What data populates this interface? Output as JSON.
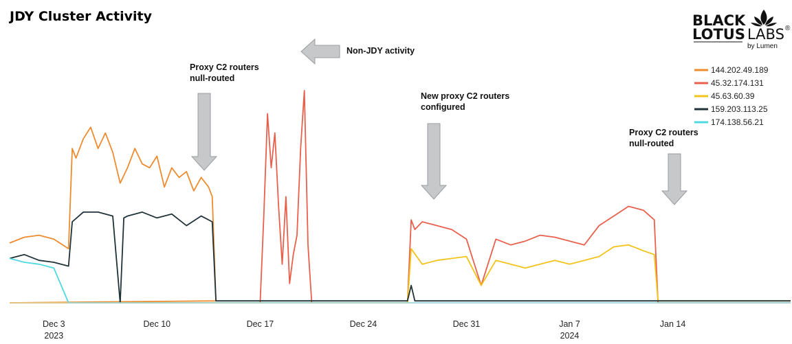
{
  "chart_data": {
    "type": "line",
    "title": "JDY Cluster Activity",
    "xlabel": "",
    "ylabel": "",
    "x_range": [
      "2023-11-30",
      "2024-01-22"
    ],
    "y_range": [
      0,
      100
    ],
    "grid": false,
    "legend_position": "top-right",
    "x_ticks": [
      {
        "date": "2023-12-03",
        "label": "Dec 3",
        "sublabel": "2023"
      },
      {
        "date": "2023-12-10",
        "label": "Dec 10",
        "sublabel": ""
      },
      {
        "date": "2023-12-17",
        "label": "Dec 17",
        "sublabel": ""
      },
      {
        "date": "2023-12-24",
        "label": "Dec 24",
        "sublabel": ""
      },
      {
        "date": "2023-12-31",
        "label": "Dec 31",
        "sublabel": ""
      },
      {
        "date": "2024-01-07",
        "label": "Jan 7",
        "sublabel": "2024"
      },
      {
        "date": "2024-01-14",
        "label": "Jan 14",
        "sublabel": ""
      }
    ],
    "series": [
      {
        "name": "144.202.49.189",
        "color": "#ED8B2E",
        "points": [
          [
            "2023-11-30",
            31
          ],
          [
            "2023-12-01",
            34
          ],
          [
            "2023-12-02",
            35
          ],
          [
            "2023-12-03",
            33
          ],
          [
            "2023-12-04",
            28
          ],
          [
            "2023-12-04 06:00",
            80
          ],
          [
            "2023-12-04 12:00",
            75
          ],
          [
            "2023-12-05",
            85
          ],
          [
            "2023-12-05 12:00",
            91
          ],
          [
            "2023-12-06",
            80
          ],
          [
            "2023-12-06 12:00",
            88
          ],
          [
            "2023-12-07",
            78
          ],
          [
            "2023-12-07 12:00",
            62
          ],
          [
            "2023-12-08",
            70
          ],
          [
            "2023-12-08 12:00",
            80
          ],
          [
            "2023-12-09",
            72
          ],
          [
            "2023-12-09 12:00",
            70
          ],
          [
            "2023-12-10",
            76
          ],
          [
            "2023-12-10 12:00",
            60
          ],
          [
            "2023-12-11",
            70
          ],
          [
            "2023-12-11 12:00",
            65
          ],
          [
            "2023-12-12",
            68
          ],
          [
            "2023-12-12 12:00",
            58
          ],
          [
            "2023-12-13",
            65
          ],
          [
            "2023-12-13 12:00",
            60
          ],
          [
            "2023-12-13 18:00",
            55
          ],
          [
            "2023-12-14",
            1
          ],
          [
            "2023-11-30",
            0
          ]
        ]
      },
      {
        "name": "45.32.174.131",
        "color": "#E8604C",
        "points": [
          [
            "2023-11-30",
            0
          ],
          [
            "2023-12-14",
            0
          ],
          [
            "2023-12-17",
            0
          ],
          [
            "2023-12-17 06:00",
            45
          ],
          [
            "2023-12-17 12:00",
            98
          ],
          [
            "2023-12-17 18:00",
            70
          ],
          [
            "2023-12-18",
            88
          ],
          [
            "2023-12-18 06:00",
            50
          ],
          [
            "2023-12-18 12:00",
            20
          ],
          [
            "2023-12-18 18:00",
            55
          ],
          [
            "2023-12-19",
            10
          ],
          [
            "2023-12-19 06:00",
            25
          ],
          [
            "2023-12-19 12:00",
            35
          ],
          [
            "2023-12-19 18:00",
            80
          ],
          [
            "2023-12-20",
            110
          ],
          [
            "2023-12-20 06:00",
            30
          ],
          [
            "2023-12-20 12:00",
            0
          ],
          [
            "2023-12-27",
            0
          ],
          [
            "2023-12-27 06:00",
            43
          ],
          [
            "2023-12-27 12:00",
            38
          ],
          [
            "2023-12-28",
            42
          ],
          [
            "2023-12-29",
            40
          ],
          [
            "2023-12-30",
            38
          ],
          [
            "2023-12-31",
            33
          ],
          [
            "2024-01-01",
            9
          ],
          [
            "2024-01-02",
            33
          ],
          [
            "2024-01-03",
            30
          ],
          [
            "2024-01-04",
            32
          ],
          [
            "2024-01-05",
            35
          ],
          [
            "2024-01-06",
            34
          ],
          [
            "2024-01-07",
            32
          ],
          [
            "2024-01-08",
            30
          ],
          [
            "2024-01-09",
            40
          ],
          [
            "2024-01-10",
            45
          ],
          [
            "2024-01-11",
            50
          ],
          [
            "2024-01-12",
            48
          ],
          [
            "2024-01-12 18:00",
            43
          ],
          [
            "2024-01-13",
            0
          ],
          [
            "2024-01-22",
            0
          ]
        ]
      },
      {
        "name": "45.63.60.39",
        "color": "#F2C319",
        "points": [
          [
            "2023-11-30",
            0
          ],
          [
            "2023-12-27",
            0
          ],
          [
            "2023-12-27 06:00",
            28
          ],
          [
            "2023-12-28",
            20
          ],
          [
            "2023-12-29",
            22
          ],
          [
            "2023-12-30",
            23
          ],
          [
            "2023-12-31",
            24
          ],
          [
            "2024-01-01",
            9
          ],
          [
            "2024-01-02",
            22
          ],
          [
            "2024-01-03",
            20
          ],
          [
            "2024-01-04",
            18
          ],
          [
            "2024-01-05",
            20
          ],
          [
            "2024-01-06",
            22
          ],
          [
            "2024-01-07",
            20
          ],
          [
            "2024-01-08",
            22
          ],
          [
            "2024-01-09",
            24
          ],
          [
            "2024-01-10",
            29
          ],
          [
            "2024-01-11",
            30
          ],
          [
            "2024-01-12",
            27
          ],
          [
            "2024-01-12 18:00",
            25
          ],
          [
            "2024-01-13",
            1
          ],
          [
            "2024-01-22",
            1
          ]
        ]
      },
      {
        "name": "159.203.113.25",
        "color": "#1E3238",
        "points": [
          [
            "2023-11-30",
            23
          ],
          [
            "2023-12-01",
            25
          ],
          [
            "2023-12-02",
            22
          ],
          [
            "2023-12-03",
            21
          ],
          [
            "2023-12-04",
            19
          ],
          [
            "2023-12-04 06:00",
            42
          ],
          [
            "2023-12-05",
            47
          ],
          [
            "2023-12-06",
            47
          ],
          [
            "2023-12-07",
            45
          ],
          [
            "2023-12-07 12:00",
            0
          ],
          [
            "2023-12-07 18:00",
            44
          ],
          [
            "2023-12-08",
            45
          ],
          [
            "2023-12-09",
            47
          ],
          [
            "2023-12-10",
            44
          ],
          [
            "2023-12-11",
            46
          ],
          [
            "2023-12-12",
            40
          ],
          [
            "2023-12-13",
            45
          ],
          [
            "2023-12-13 18:00",
            42
          ],
          [
            "2023-12-14",
            1
          ],
          [
            "2023-12-27",
            1
          ],
          [
            "2023-12-27 06:00",
            9
          ],
          [
            "2023-12-27 12:00",
            1
          ],
          [
            "2024-01-22",
            1
          ]
        ]
      },
      {
        "name": "174.138.56.21",
        "color": "#4DD9E0",
        "points": [
          [
            "2023-11-30",
            23
          ],
          [
            "2023-12-01",
            21
          ],
          [
            "2023-12-02",
            20
          ],
          [
            "2023-12-03",
            18
          ],
          [
            "2023-12-04",
            0
          ],
          [
            "2024-01-22",
            0
          ]
        ]
      }
    ],
    "annotations": [
      {
        "lines": [
          "Proxy C2 routers",
          "null-routed"
        ],
        "date": "2023-12-13"
      },
      {
        "lines": [
          "Non-JDY activity"
        ],
        "date": "2023-12-20"
      },
      {
        "lines": [
          "New proxy C2 routers",
          "configured"
        ],
        "date": "2023-12-27"
      },
      {
        "lines": [
          "Proxy C2 routers",
          "null-routed"
        ],
        "date": "2024-01-13"
      }
    ]
  },
  "logo": {
    "line1": "BLACK",
    "line2a": "LOTUS",
    "line2b": "LABS",
    "registered": "®",
    "tagline": "by Lumen"
  }
}
